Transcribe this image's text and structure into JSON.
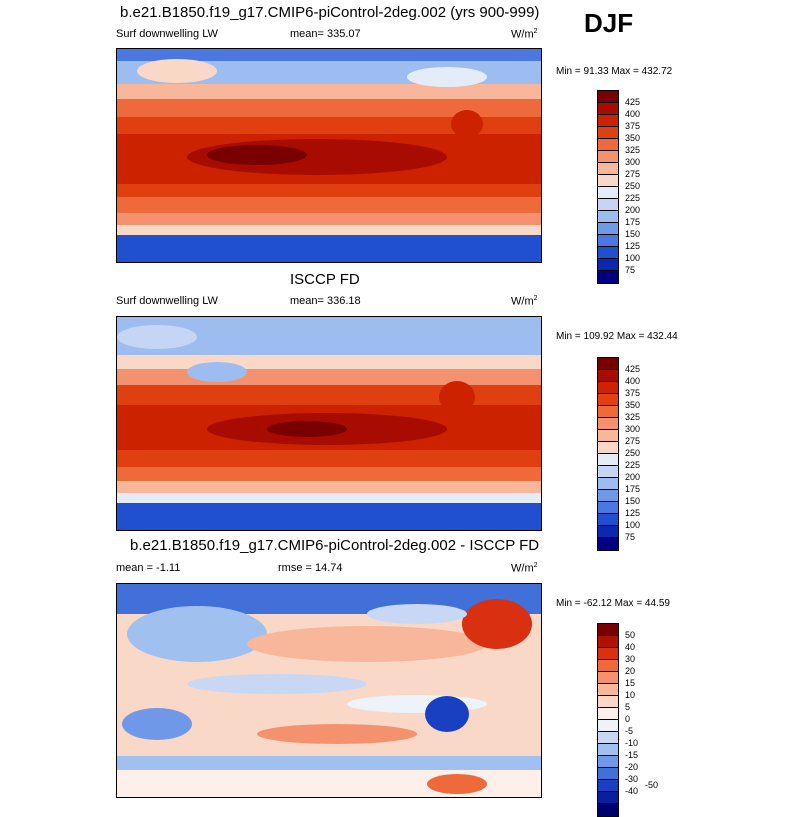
{
  "season": "DJF",
  "panels": [
    {
      "title": "b.e21.B1850.f19_g17.CMIP6-piControl-2deg.002 (yrs 900-999)",
      "left_label": "Surf downwelling LW",
      "center_label": "mean= 335.07",
      "units": "W/m",
      "units_sup": "2",
      "minmax": "Min =  91.33 Max = 432.72",
      "colorbar_labels": [
        "425",
        "400",
        "375",
        "350",
        "325",
        "300",
        "275",
        "250",
        "225",
        "200",
        "175",
        "150",
        "125",
        "100",
        "75"
      ],
      "colors": [
        "#7a0000",
        "#a80c00",
        "#cc2200",
        "#e04010",
        "#ee6a3a",
        "#f49270",
        "#f8b69a",
        "#fad8c8",
        "#e4ecf8",
        "#c4d6f4",
        "#9dbcf0",
        "#6f9ae8",
        "#4a78e0",
        "#2050d0",
        "#0a28b0",
        "#000080"
      ]
    },
    {
      "title": "ISCCP FD",
      "left_label": "Surf downwelling LW",
      "center_label": "mean= 336.18",
      "units": "W/m",
      "units_sup": "2",
      "minmax": "Min = 109.92 Max = 432.44",
      "colorbar_labels": [
        "425",
        "400",
        "375",
        "350",
        "325",
        "300",
        "275",
        "250",
        "225",
        "200",
        "175",
        "150",
        "125",
        "100",
        "75"
      ],
      "colors": [
        "#7a0000",
        "#a80c00",
        "#cc2200",
        "#e04010",
        "#ee6a3a",
        "#f49270",
        "#f8b69a",
        "#fad8c8",
        "#e4ecf8",
        "#c4d6f4",
        "#9dbcf0",
        "#6f9ae8",
        "#4a78e0",
        "#2050d0",
        "#0a28b0",
        "#000080"
      ]
    },
    {
      "title": "b.e21.B1850.f19_g17.CMIP6-piControl-2deg.002 - ISCCP FD",
      "left_label": "mean =  -1.11",
      "center_label": "rmse =  14.74",
      "units": "W/m",
      "units_sup": "2",
      "minmax": "Min = -62.12 Max =  44.59",
      "colorbar_labels": [
        "50",
        "40",
        "30",
        "20",
        "15",
        "10",
        "5",
        "0",
        "-5",
        "-10",
        "-15",
        "-20",
        "-30",
        "-40",
        "-50"
      ],
      "colors": [
        "#7a0000",
        "#b01000",
        "#d83010",
        "#ee6a3a",
        "#f49270",
        "#f8b69a",
        "#fad8c8",
        "#fdf0ea",
        "#eef2fa",
        "#c8d8f4",
        "#a0c0f0",
        "#7098e8",
        "#4070d8",
        "#1840c0",
        "#0a1ea0",
        "#000070"
      ]
    }
  ]
}
